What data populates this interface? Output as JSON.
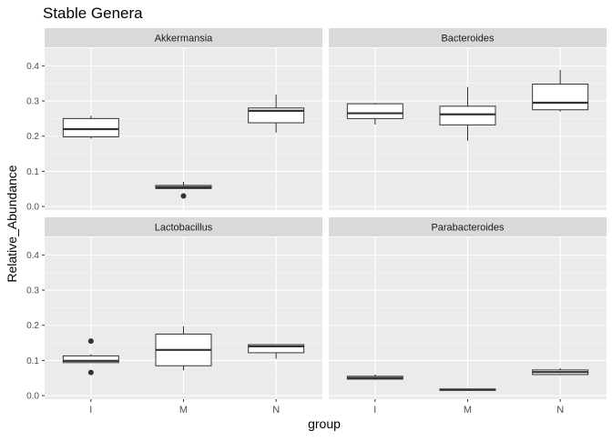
{
  "chart_data": {
    "type": "box",
    "title": "Stable Genera",
    "xlabel": "group",
    "ylabel": "Relative_Abundance",
    "categories": [
      "I",
      "M",
      "N"
    ],
    "ylim": [
      -0.01,
      0.45
    ],
    "yticks": [
      0.0,
      0.1,
      0.2,
      0.3,
      0.4
    ],
    "ytick_labels": [
      "0.0",
      "0.1",
      "0.2",
      "0.3",
      "0.4"
    ],
    "grid": true,
    "facets": [
      {
        "name": "Akkermansia",
        "boxes": [
          {
            "group": "I",
            "min": 0.193,
            "q1": 0.198,
            "median": 0.22,
            "q3": 0.25,
            "max": 0.258,
            "outliers": []
          },
          {
            "group": "M",
            "min": 0.05,
            "q1": 0.051,
            "median": 0.055,
            "q3": 0.06,
            "max": 0.07,
            "outliers": [
              0.03
            ]
          },
          {
            "group": "N",
            "min": 0.21,
            "q1": 0.238,
            "median": 0.272,
            "q3": 0.28,
            "max": 0.318,
            "outliers": []
          }
        ]
      },
      {
        "name": "Bacteroides",
        "boxes": [
          {
            "group": "I",
            "min": 0.233,
            "q1": 0.25,
            "median": 0.265,
            "q3": 0.292,
            "max": 0.295,
            "outliers": []
          },
          {
            "group": "M",
            "min": 0.187,
            "q1": 0.232,
            "median": 0.262,
            "q3": 0.285,
            "max": 0.34,
            "outliers": []
          },
          {
            "group": "N",
            "min": 0.27,
            "q1": 0.275,
            "median": 0.295,
            "q3": 0.348,
            "max": 0.388,
            "outliers": []
          }
        ]
      },
      {
        "name": "Lactobacillus",
        "boxes": [
          {
            "group": "I",
            "min": 0.094,
            "q1": 0.094,
            "median": 0.099,
            "q3": 0.113,
            "max": 0.118,
            "outliers": [
              0.155,
              0.066
            ]
          },
          {
            "group": "M",
            "min": 0.072,
            "q1": 0.085,
            "median": 0.13,
            "q3": 0.175,
            "max": 0.197,
            "outliers": []
          },
          {
            "group": "N",
            "min": 0.105,
            "q1": 0.122,
            "median": 0.14,
            "q3": 0.145,
            "max": 0.145,
            "outliers": []
          }
        ]
      },
      {
        "name": "Parabacteroides",
        "boxes": [
          {
            "group": "I",
            "min": 0.045,
            "q1": 0.047,
            "median": 0.05,
            "q3": 0.055,
            "max": 0.06,
            "outliers": []
          },
          {
            "group": "M",
            "min": 0.014,
            "q1": 0.015,
            "median": 0.017,
            "q3": 0.019,
            "max": 0.02,
            "outliers": []
          },
          {
            "group": "N",
            "min": 0.058,
            "q1": 0.06,
            "median": 0.067,
            "q3": 0.073,
            "max": 0.078,
            "outliers": []
          }
        ]
      }
    ]
  }
}
